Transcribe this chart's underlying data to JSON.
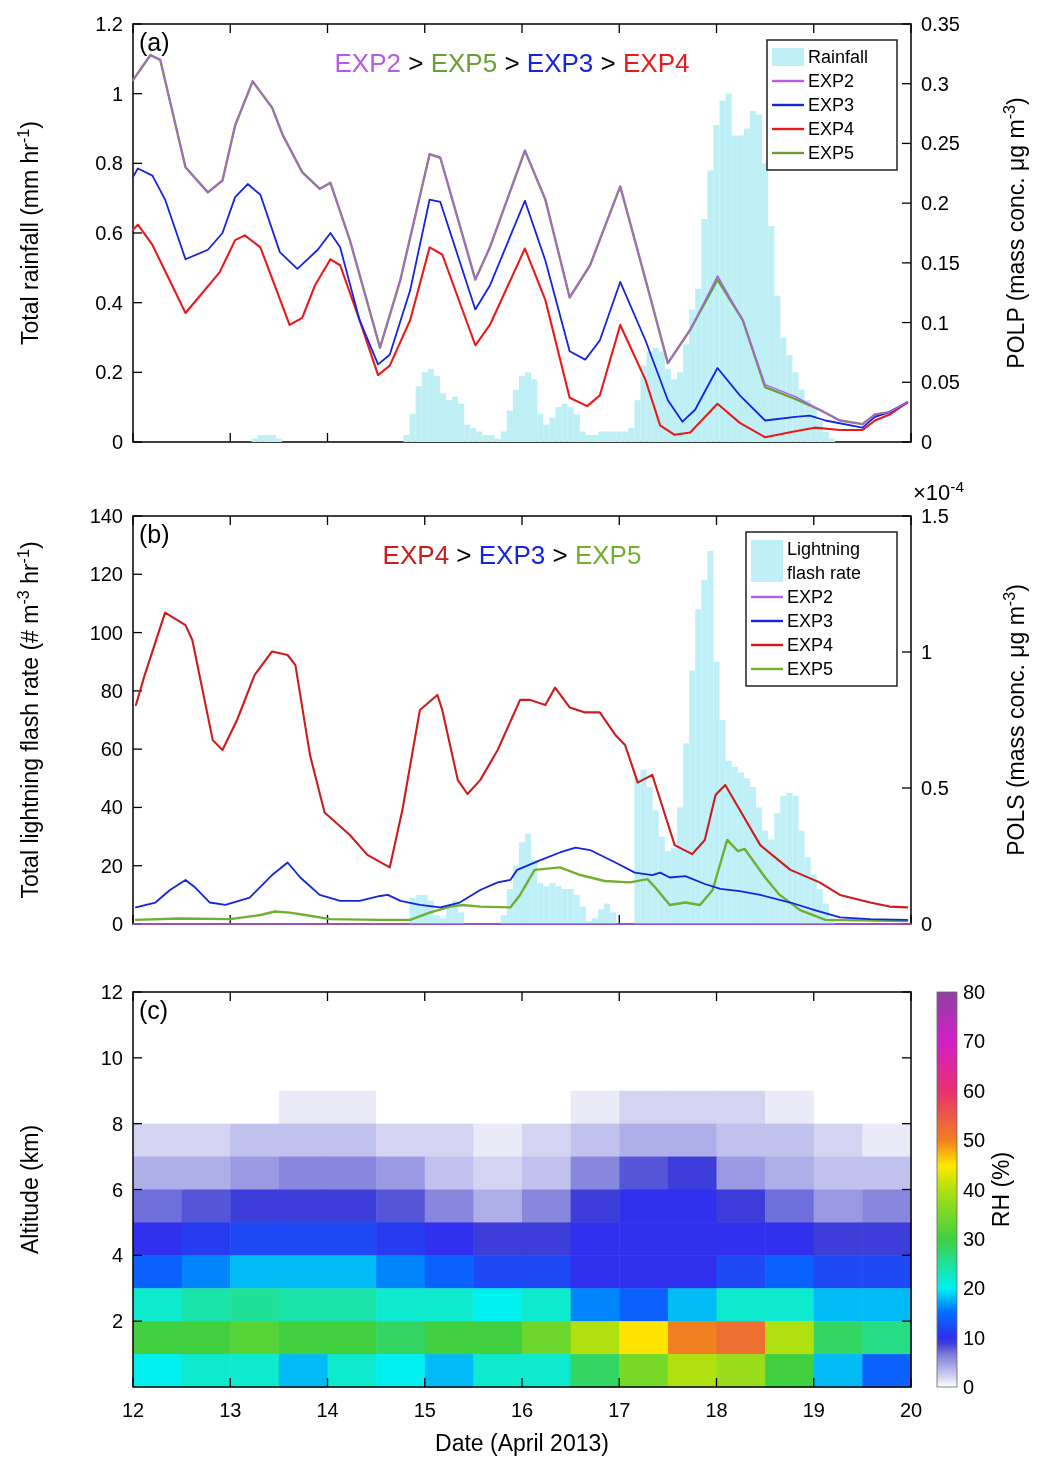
{
  "chart_data": [
    {
      "type": "line",
      "xlim": [
        12,
        20
      ],
      "xticks": [
        12,
        13,
        14,
        15,
        16,
        17,
        18,
        19,
        20
      ],
      "tick_labels": "y",
      "ylim": [
        0,
        1.2
      ],
      "yticks": [
        0,
        0.2,
        0.4,
        0.6,
        0.8,
        1,
        1.2
      ],
      "y2lim": [
        0,
        0.35
      ],
      "y2ticks": [
        0,
        0.05,
        0.1,
        0.15,
        0.2,
        0.25,
        0.3,
        0.35
      ],
      "ylabel": "Total rainfall (mm hr$^{-1}$)",
      "y2label": "POLP (mass conc. μg m$^{-3}$)",
      "annotations": [
        "(a)",
        "EXP2 > EXP5 > EXP3 > EXP4"
      ],
      "legend": "top right",
      "series": [
        {
          "name": "Rainfall",
          "type": "bar",
          "color": "#bdeff5",
          "x": [
            13.25,
            13.3125,
            13.375,
            13.4375,
            13.5,
            14.8125,
            14.875,
            14.9375,
            15.0,
            15.0625,
            15.125,
            15.1875,
            15.25,
            15.3125,
            15.375,
            15.4375,
            15.5,
            15.5625,
            15.625,
            15.6875,
            15.75,
            15.8125,
            15.875,
            15.9375,
            16.0,
            16.0625,
            16.125,
            16.1875,
            16.25,
            16.3125,
            16.375,
            16.4375,
            16.5,
            16.5625,
            16.625,
            16.6875,
            16.75,
            16.8125,
            16.875,
            16.9375,
            17.0,
            17.0625,
            17.125,
            17.1875,
            17.25,
            17.3125,
            17.375,
            17.4375,
            17.5,
            17.5625,
            17.625,
            17.6875,
            17.75,
            17.8125,
            17.875,
            17.9375,
            18.0,
            18.0625,
            18.125,
            18.1875,
            18.25,
            18.3125,
            18.375,
            18.4375,
            18.5,
            18.5625,
            18.625,
            18.6875,
            18.75,
            18.8125,
            18.875,
            18.9375,
            19.0,
            19.0625,
            19.125,
            19.1875
          ],
          "values": [
            0.01,
            0.02,
            0.02,
            0.02,
            0.01,
            0.02,
            0.08,
            0.16,
            0.2,
            0.21,
            0.19,
            0.14,
            0.12,
            0.13,
            0.11,
            0.05,
            0.04,
            0.03,
            0.02,
            0.02,
            0.01,
            0.03,
            0.09,
            0.15,
            0.19,
            0.2,
            0.18,
            0.08,
            0.05,
            0.07,
            0.1,
            0.11,
            0.1,
            0.08,
            0.03,
            0.02,
            0.02,
            0.03,
            0.03,
            0.03,
            0.03,
            0.03,
            0.04,
            0.12,
            0.22,
            0.26,
            0.27,
            0.26,
            0.21,
            0.18,
            0.2,
            0.28,
            0.38,
            0.44,
            0.64,
            0.78,
            0.91,
            0.98,
            1.0,
            0.88,
            0.88,
            0.9,
            0.95,
            0.94,
            0.8,
            0.62,
            0.42,
            0.3,
            0.25,
            0.2,
            0.15,
            0.12,
            0.1,
            0.06,
            0.03,
            0.01
          ]
        },
        {
          "name": "EXP2",
          "type": "line",
          "axis": "y2",
          "color": "#b35ce8",
          "x": [
            12.0,
            12.18,
            12.28,
            12.54,
            12.77,
            12.92,
            13.05,
            13.23,
            13.43,
            13.54,
            13.74,
            13.92,
            14.03,
            14.23,
            14.54,
            14.75,
            15.05,
            15.16,
            15.52,
            15.67,
            16.03,
            16.24,
            16.49,
            16.7,
            17.01,
            17.27,
            17.5,
            17.73,
            18.01,
            18.27,
            18.5,
            18.81,
            19.06,
            19.27,
            19.5,
            19.63,
            19.78,
            19.96
          ],
          "values": [
            0.303,
            0.324,
            0.32,
            0.23,
            0.209,
            0.219,
            0.265,
            0.302,
            0.28,
            0.257,
            0.226,
            0.212,
            0.217,
            0.169,
            0.079,
            0.136,
            0.241,
            0.238,
            0.136,
            0.163,
            0.244,
            0.203,
            0.121,
            0.148,
            0.214,
            0.136,
            0.066,
            0.094,
            0.139,
            0.102,
            0.048,
            0.038,
            0.027,
            0.018,
            0.015,
            0.023,
            0.025,
            0.033
          ]
        },
        {
          "name": "EXP3",
          "type": "line",
          "axis": "y2",
          "color": "#1424e0",
          "x": [
            12.0,
            12.05,
            12.2,
            12.33,
            12.54,
            12.77,
            12.92,
            13.05,
            13.18,
            13.31,
            13.51,
            13.69,
            13.9,
            14.03,
            14.13,
            14.33,
            14.52,
            14.64,
            14.85,
            15.05,
            15.16,
            15.52,
            15.67,
            16.03,
            16.24,
            16.49,
            16.65,
            16.8,
            17.01,
            17.27,
            17.5,
            17.65,
            17.78,
            18.01,
            18.24,
            18.5,
            18.81,
            18.96,
            19.12,
            19.5,
            19.63,
            19.78,
            19.96
          ],
          "values": [
            0.222,
            0.229,
            0.223,
            0.203,
            0.153,
            0.161,
            0.175,
            0.205,
            0.216,
            0.207,
            0.159,
            0.145,
            0.161,
            0.175,
            0.163,
            0.102,
            0.065,
            0.073,
            0.127,
            0.203,
            0.201,
            0.111,
            0.131,
            0.202,
            0.152,
            0.076,
            0.069,
            0.085,
            0.134,
            0.085,
            0.035,
            0.017,
            0.027,
            0.062,
            0.039,
            0.018,
            0.021,
            0.022,
            0.018,
            0.012,
            0.021,
            0.025,
            0.033
          ]
        },
        {
          "name": "EXP4",
          "type": "line",
          "axis": "y2",
          "color": "#e81a1a",
          "x": [
            12.0,
            12.05,
            12.2,
            12.54,
            12.89,
            13.05,
            13.15,
            13.31,
            13.61,
            13.74,
            13.87,
            14.03,
            14.13,
            14.33,
            14.52,
            14.64,
            14.85,
            15.05,
            15.18,
            15.52,
            15.67,
            16.03,
            16.24,
            16.49,
            16.67,
            16.8,
            17.01,
            17.27,
            17.42,
            17.57,
            17.73,
            18.01,
            18.24,
            18.5,
            18.81,
            19.01,
            19.27,
            19.5,
            19.63,
            19.78,
            19.96
          ],
          "values": [
            0.178,
            0.182,
            0.165,
            0.108,
            0.142,
            0.169,
            0.173,
            0.163,
            0.098,
            0.104,
            0.131,
            0.153,
            0.148,
            0.102,
            0.056,
            0.064,
            0.102,
            0.163,
            0.157,
            0.081,
            0.098,
            0.162,
            0.119,
            0.037,
            0.03,
            0.039,
            0.098,
            0.052,
            0.014,
            0.006,
            0.008,
            0.032,
            0.016,
            0.004,
            0.009,
            0.012,
            0.01,
            0.01,
            0.018,
            0.023,
            0.033
          ]
        },
        {
          "name": "EXP5",
          "type": "line",
          "axis": "y2",
          "color": "#6b9e34",
          "x": [
            12.0,
            12.18,
            12.28,
            12.54,
            12.77,
            12.92,
            13.05,
            13.23,
            13.43,
            13.54,
            13.74,
            13.92,
            14.03,
            14.23,
            14.54,
            14.75,
            15.05,
            15.16,
            15.52,
            15.67,
            16.03,
            16.24,
            16.49,
            16.7,
            17.01,
            17.27,
            17.5,
            17.73,
            18.01,
            18.27,
            18.5,
            18.81,
            19.06,
            19.27,
            19.5,
            19.63,
            19.78,
            19.96
          ],
          "values": [
            0.303,
            0.324,
            0.32,
            0.23,
            0.209,
            0.219,
            0.265,
            0.302,
            0.28,
            0.257,
            0.226,
            0.212,
            0.217,
            0.169,
            0.079,
            0.136,
            0.241,
            0.238,
            0.136,
            0.163,
            0.244,
            0.203,
            0.121,
            0.148,
            0.214,
            0.136,
            0.066,
            0.094,
            0.136,
            0.102,
            0.046,
            0.036,
            0.027,
            0.018,
            0.015,
            0.023,
            0.025,
            0.033
          ]
        }
      ]
    },
    {
      "type": "line",
      "xlim": [
        12,
        20
      ],
      "xticks": [
        12,
        13,
        14,
        15,
        16,
        17,
        18,
        19,
        20
      ],
      "tick_labels": "y",
      "ylim": [
        0,
        140
      ],
      "yticks": [
        0,
        20,
        40,
        60,
        80,
        100,
        120,
        140
      ],
      "y2lim": [
        0,
        1.5
      ],
      "y2ticks": [
        0,
        0.5,
        1,
        1.5
      ],
      "ylabel": "Total lightning flash rate (# m$^{-3}$ hr$^{-1}$)",
      "y2label": "POLS (mass conc. μg m$^{-3}$)",
      "annotations": [
        "(b)",
        "EXP4 > EXP3 > EXP5",
        "×10$^{-4}$"
      ],
      "legend": "top right",
      "series": [
        {
          "name": "Lightning flash rate",
          "type": "bar",
          "color": "#bff0f7",
          "x": [
            14.875,
            14.9375,
            15.0,
            15.0625,
            15.125,
            15.1875,
            15.25,
            15.3125,
            15.375,
            15.8125,
            15.875,
            15.9375,
            16.0,
            16.0625,
            16.125,
            16.1875,
            16.25,
            16.3125,
            16.375,
            16.4375,
            16.5,
            16.5625,
            16.625,
            16.6875,
            16.75,
            16.8125,
            16.875,
            16.9375,
            17.1875,
            17.25,
            17.3125,
            17.375,
            17.4375,
            17.5,
            17.5625,
            17.625,
            17.6875,
            17.75,
            17.8125,
            17.875,
            17.9375,
            18.0,
            18.0625,
            18.125,
            18.1875,
            18.25,
            18.3125,
            18.375,
            18.4375,
            18.5,
            18.5625,
            18.625,
            18.6875,
            18.75,
            18.8125,
            18.875,
            18.9375,
            19.0,
            19.0625,
            19.125,
            19.1875
          ],
          "values": [
            9,
            10,
            10,
            8,
            3,
            2,
            6,
            8,
            4,
            3,
            12,
            20,
            28,
            31,
            22,
            14,
            13,
            14,
            13,
            12,
            12,
            10,
            6,
            1,
            2,
            5,
            7,
            4,
            50,
            53,
            47,
            39,
            30,
            25,
            26,
            40,
            62,
            87,
            108,
            118,
            128,
            90,
            70,
            56,
            54,
            52,
            50,
            47,
            40,
            32,
            29,
            38,
            44,
            45,
            44,
            32,
            23,
            17,
            12,
            7,
            2
          ]
        },
        {
          "name": "EXP2",
          "type": "line",
          "axis": "y2",
          "color": "#b35ce8",
          "x": [
            12,
            20
          ],
          "values": [
            0,
            0
          ]
        },
        {
          "name": "EXP3",
          "type": "line",
          "axis": "y2",
          "color": "#1424e0",
          "x": [
            12.03,
            12.23,
            12.38,
            12.54,
            12.64,
            12.79,
            12.95,
            13.2,
            13.43,
            13.59,
            13.72,
            13.92,
            14.13,
            14.33,
            14.54,
            14.62,
            14.75,
            14.95,
            15.16,
            15.36,
            15.57,
            15.75,
            15.88,
            15.95,
            16.19,
            16.39,
            16.55,
            16.7,
            16.96,
            17.16,
            17.34,
            17.42,
            17.52,
            17.68,
            17.88,
            18.04,
            18.24,
            18.45,
            18.76,
            19.01,
            19.27,
            19.58,
            19.96
          ],
          "values": [
            0.061,
            0.079,
            0.125,
            0.162,
            0.134,
            0.079,
            0.07,
            0.097,
            0.18,
            0.226,
            0.171,
            0.107,
            0.085,
            0.085,
            0.103,
            0.107,
            0.085,
            0.07,
            0.061,
            0.079,
            0.125,
            0.153,
            0.162,
            0.199,
            0.235,
            0.263,
            0.281,
            0.272,
            0.226,
            0.189,
            0.18,
            0.189,
            0.171,
            0.176,
            0.147,
            0.129,
            0.121,
            0.107,
            0.079,
            0.051,
            0.024,
            0.018,
            0.015
          ]
        },
        {
          "name": "EXP4",
          "type": "line",
          "axis": "y2",
          "color": "#cc1c1c",
          "x": [
            12.03,
            12.12,
            12.33,
            12.54,
            12.61,
            12.82,
            12.92,
            13.07,
            13.25,
            13.43,
            13.59,
            13.67,
            13.82,
            13.97,
            14.23,
            14.41,
            14.64,
            14.77,
            14.95,
            15.13,
            15.18,
            15.34,
            15.44,
            15.57,
            15.75,
            15.98,
            16.08,
            16.24,
            16.34,
            16.49,
            16.65,
            16.8,
            16.96,
            17.06,
            17.19,
            17.34,
            17.57,
            17.75,
            17.88,
            17.99,
            18.09,
            18.24,
            18.45,
            18.76,
            19.06,
            19.27,
            19.58,
            19.78,
            19.96
          ],
          "values": [
            0.805,
            0.915,
            1.145,
            1.099,
            1.044,
            0.676,
            0.64,
            0.75,
            0.915,
            1.002,
            0.989,
            0.952,
            0.621,
            0.41,
            0.327,
            0.254,
            0.208,
            0.419,
            0.787,
            0.842,
            0.787,
            0.529,
            0.478,
            0.529,
            0.64,
            0.824,
            0.824,
            0.805,
            0.869,
            0.796,
            0.778,
            0.778,
            0.695,
            0.658,
            0.52,
            0.548,
            0.29,
            0.257,
            0.309,
            0.474,
            0.511,
            0.419,
            0.29,
            0.199,
            0.153,
            0.107,
            0.079,
            0.064,
            0.061
          ]
        },
        {
          "name": "EXP5",
          "type": "line",
          "axis": "y2",
          "color": "#72ae30",
          "x": [
            12.03,
            12.48,
            13.0,
            13.31,
            13.46,
            13.61,
            13.77,
            14.03,
            14.54,
            14.85,
            15.05,
            15.26,
            15.39,
            15.57,
            15.88,
            15.98,
            16.13,
            16.39,
            16.6,
            16.85,
            17.11,
            17.29,
            17.37,
            17.52,
            17.68,
            17.83,
            17.96,
            18.11,
            18.22,
            18.29,
            18.5,
            18.65,
            18.86,
            19.12,
            19.96
          ],
          "values": [
            0.015,
            0.02,
            0.018,
            0.033,
            0.046,
            0.042,
            0.033,
            0.018,
            0.015,
            0.015,
            0.042,
            0.064,
            0.07,
            0.064,
            0.061,
            0.107,
            0.199,
            0.208,
            0.18,
            0.158,
            0.153,
            0.165,
            0.134,
            0.07,
            0.079,
            0.07,
            0.125,
            0.309,
            0.268,
            0.276,
            0.171,
            0.107,
            0.051,
            0.015,
            0.011
          ]
        }
      ]
    },
    {
      "type": "heatmap",
      "xlim": [
        12,
        20
      ],
      "xticks": [
        12,
        13,
        14,
        15,
        16,
        17,
        18,
        19,
        20
      ],
      "ylim": [
        0,
        12
      ],
      "yticks": [
        2,
        4,
        6,
        8,
        10,
        12
      ],
      "xlabel": "Date (April 2013)",
      "ylabel": "Altitude (km)",
      "clabel": "RH (%)",
      "clim": [
        0,
        80
      ],
      "cticks": [
        0,
        10,
        20,
        30,
        40,
        50,
        60,
        70,
        80
      ],
      "annotations": [
        "(c)"
      ],
      "cells": [
        [
          0,
          0,
          0,
          0,
          0,
          0,
          0,
          0,
          0,
          0,
          0,
          0,
          0,
          0,
          0,
          0
        ],
        [
          0,
          0,
          0,
          0,
          0,
          0,
          0,
          0,
          0,
          0,
          0,
          0,
          0,
          0,
          0,
          0
        ],
        [
          0,
          0,
          0,
          0,
          0,
          0,
          0,
          0,
          0,
          0,
          0,
          0,
          0,
          0,
          0,
          0
        ],
        [
          0,
          0,
          0,
          1,
          1,
          0,
          0,
          0,
          0,
          1,
          2,
          2,
          2,
          1,
          0,
          0
        ],
        [
          2,
          2,
          3,
          3,
          3,
          2,
          2,
          1,
          2,
          3,
          4,
          4,
          3,
          3,
          2,
          1
        ],
        [
          4,
          4,
          5,
          6,
          6,
          5,
          3,
          2,
          3,
          6,
          8,
          9,
          5,
          4,
          3,
          3
        ],
        [
          7,
          8,
          9,
          9,
          9,
          8,
          6,
          4,
          6,
          9,
          10,
          10,
          9,
          7,
          5,
          6
        ],
        [
          10,
          11,
          12,
          12,
          12,
          11,
          10,
          9,
          9,
          10,
          10,
          10,
          10,
          10,
          9,
          9
        ],
        [
          14,
          16,
          18,
          18,
          18,
          16,
          14,
          12,
          12,
          10,
          10,
          10,
          12,
          14,
          12,
          12
        ],
        [
          22,
          24,
          25,
          24,
          24,
          22,
          22,
          20,
          22,
          16,
          14,
          18,
          22,
          22,
          18,
          18
        ],
        [
          30,
          30,
          32,
          30,
          30,
          28,
          30,
          30,
          34,
          40,
          45,
          50,
          52,
          40,
          28,
          26
        ],
        [
          20,
          22,
          22,
          18,
          22,
          20,
          18,
          22,
          22,
          28,
          35,
          40,
          38,
          30,
          18,
          14
        ]
      ]
    }
  ]
}
